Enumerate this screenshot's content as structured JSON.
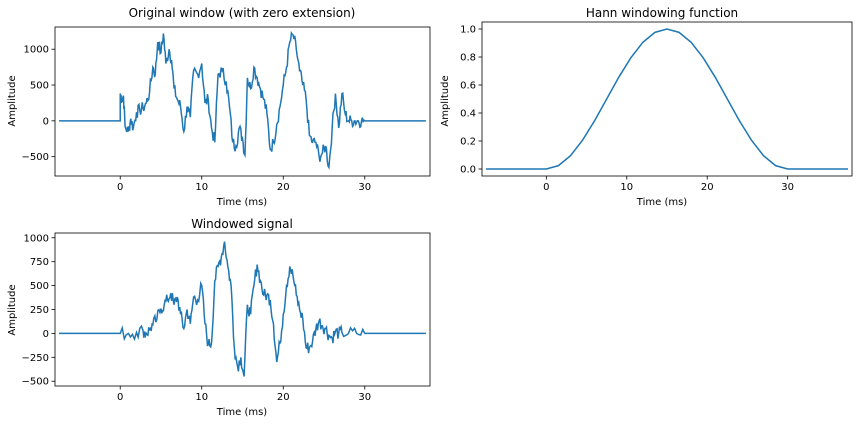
{
  "colors": {
    "line": "#1f77b4",
    "axes": "#000000",
    "background": "#ffffff"
  },
  "chart_data": [
    {
      "type": "line",
      "title": "Original window (with zero extension)",
      "xlabel": "Time (ms)",
      "ylabel": "Amplitude",
      "xlim": [
        -8.0,
        38.0
      ],
      "ylim": [
        -770,
        1310
      ],
      "xticks": [
        0,
        10,
        20,
        30
      ],
      "xtick_labels": [
        "0",
        "10",
        "20",
        "30"
      ],
      "yticks": [
        -500,
        0,
        500,
        1000
      ],
      "ytick_labels": [
        "−500",
        "0",
        "500",
        "1000"
      ],
      "grid": false,
      "series": [
        {
          "x": [
            -7.5,
            0.0,
            0.0,
            0.2,
            0.4,
            0.6,
            1.0,
            1.3,
            1.6,
            2.0,
            2.4,
            2.8,
            3.2,
            3.6,
            4.0,
            4.3,
            4.6,
            5.0,
            5.3,
            5.6,
            6.0,
            6.3,
            6.6,
            7.0,
            7.4,
            7.8,
            8.2,
            8.6,
            9.0,
            9.5,
            10.0,
            10.4,
            10.8,
            11.2,
            11.6,
            12.0,
            12.5,
            13.0,
            13.4,
            13.8,
            14.2,
            14.6,
            15.0,
            15.3,
            15.6,
            16.0,
            16.4,
            16.8,
            17.2,
            17.6,
            18.0,
            18.4,
            18.8,
            19.2,
            19.6,
            20.0,
            20.4,
            20.8,
            21.2,
            21.6,
            22.0,
            22.4,
            22.8,
            23.2,
            23.6,
            24.0,
            24.4,
            24.8,
            25.2,
            25.6,
            26.0,
            26.4,
            26.8,
            27.2,
            27.6,
            28.0,
            28.4,
            28.8,
            29.2,
            29.6,
            30.0,
            30.0,
            37.5
          ],
          "y": [
            0,
            0,
            380,
            300,
            350,
            -80,
            -150,
            30,
            -100,
            120,
            150,
            180,
            250,
            400,
            750,
            650,
            1100,
            950,
            1220,
            800,
            1000,
            850,
            450,
            300,
            200,
            -150,
            200,
            50,
            700,
            650,
            800,
            250,
            300,
            -100,
            -300,
            650,
            700,
            550,
            200,
            -300,
            -350,
            -100,
            -250,
            -480,
            600,
            450,
            750,
            600,
            450,
            300,
            100,
            -400,
            -300,
            -50,
            200,
            500,
            750,
            1100,
            1200,
            1000,
            700,
            500,
            300,
            -200,
            -300,
            -300,
            -500,
            -450,
            -350,
            -650,
            -100,
            380,
            -100,
            380,
            100,
            0,
            0,
            0,
            0,
            0,
            0,
            0,
            0
          ],
          "note_shape": "noisy"
        }
      ]
    },
    {
      "type": "line",
      "title": "Hann windowing function",
      "xlabel": "Time (ms)",
      "ylabel": "Amplitude",
      "xlim": [
        -8.0,
        38.0
      ],
      "ylim": [
        -0.05,
        1.05
      ],
      "xticks": [
        0,
        10,
        20,
        30
      ],
      "xtick_labels": [
        "0",
        "10",
        "20",
        "30"
      ],
      "yticks": [
        0.0,
        0.2,
        0.4,
        0.6,
        0.8,
        1.0
      ],
      "ytick_labels": [
        "0.0",
        "0.2",
        "0.4",
        "0.6",
        "0.8",
        "1.0"
      ],
      "grid": false,
      "series": [
        {
          "x": [
            -7.5,
            0,
            1.5,
            3,
            4.5,
            6,
            7.5,
            9,
            10.5,
            12,
            13.5,
            15,
            16.5,
            18,
            19.5,
            21,
            22.5,
            24,
            25.5,
            27,
            28.5,
            30,
            37.5
          ],
          "y": [
            0,
            0,
            0.024,
            0.095,
            0.206,
            0.345,
            0.5,
            0.655,
            0.794,
            0.905,
            0.976,
            1.0,
            0.976,
            0.905,
            0.794,
            0.655,
            0.5,
            0.345,
            0.206,
            0.095,
            0.024,
            0,
            0
          ]
        }
      ]
    },
    {
      "type": "line",
      "title": "Windowed signal",
      "xlabel": "Time (ms)",
      "ylabel": "Amplitude",
      "xlim": [
        -8.0,
        38.0
      ],
      "ylim": [
        -550,
        1050
      ],
      "xticks": [
        0,
        10,
        20,
        30
      ],
      "xtick_labels": [
        "0",
        "10",
        "20",
        "30"
      ],
      "yticks": [
        -500,
        -250,
        0,
        250,
        500,
        750,
        1000
      ],
      "ytick_labels": [
        "−500",
        "−250",
        "0",
        "250",
        "500",
        "750",
        "1000"
      ],
      "grid": false,
      "series": [
        {
          "x": [
            -7.5,
            0.0,
            1.0,
            2.0,
            2.8,
            3.2,
            3.6,
            4.0,
            4.5,
            5.0,
            5.4,
            5.8,
            6.2,
            6.6,
            7.0,
            7.4,
            7.8,
            8.2,
            8.6,
            9.0,
            9.5,
            10.0,
            10.4,
            10.8,
            11.2,
            11.6,
            12.0,
            12.4,
            12.8,
            13.2,
            13.6,
            14.0,
            14.4,
            14.8,
            15.2,
            15.6,
            16.0,
            16.4,
            16.8,
            17.2,
            17.6,
            18.0,
            18.4,
            18.8,
            19.2,
            19.6,
            20.0,
            20.4,
            20.8,
            21.2,
            21.6,
            22.0,
            22.4,
            22.8,
            23.2,
            23.6,
            24.0,
            24.4,
            24.8,
            25.2,
            25.6,
            26.0,
            26.4,
            26.8,
            27.2,
            28.0,
            29.0,
            30.0,
            37.5
          ],
          "y": [
            0,
            0,
            0,
            10,
            30,
            0,
            40,
            90,
            150,
            260,
            300,
            350,
            420,
            300,
            380,
            200,
            50,
            250,
            100,
            380,
            350,
            500,
            100,
            -120,
            -100,
            550,
            700,
            800,
            960,
            700,
            500,
            -150,
            -350,
            -250,
            -450,
            300,
            200,
            500,
            720,
            550,
            400,
            400,
            350,
            100,
            -300,
            -100,
            200,
            500,
            700,
            600,
            400,
            250,
            150,
            -150,
            -150,
            -80,
            50,
            130,
            80,
            50,
            -20,
            -50,
            20,
            0,
            10,
            0,
            0,
            0,
            0
          ],
          "note_shape": "noisy"
        }
      ]
    }
  ]
}
